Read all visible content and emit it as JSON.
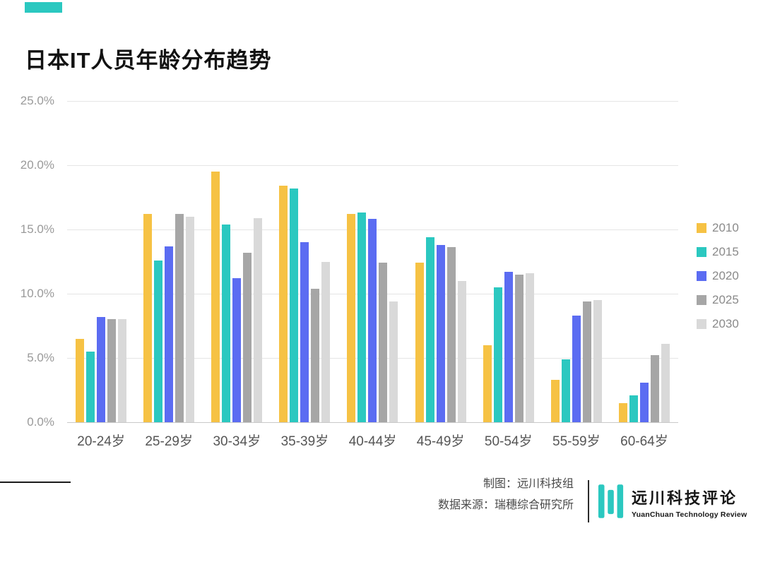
{
  "accent_color": "#2BC8C0",
  "title": "日本IT人员年龄分布趋势",
  "chart_data": {
    "type": "bar",
    "title": "日本IT人员年龄分布趋势",
    "categories": [
      "20-24岁",
      "25-29岁",
      "30-34岁",
      "35-39岁",
      "40-44岁",
      "45-49岁",
      "50-54岁",
      "55-59岁",
      "60-64岁"
    ],
    "series": [
      {
        "name": "2010",
        "color": "#F6C244",
        "values": [
          6.5,
          16.2,
          19.5,
          18.4,
          16.2,
          12.4,
          6.0,
          3.3,
          1.5
        ]
      },
      {
        "name": "2015",
        "color": "#2BC8C0",
        "values": [
          5.5,
          12.6,
          15.4,
          18.2,
          16.3,
          14.4,
          10.5,
          4.9,
          2.1
        ]
      },
      {
        "name": "2020",
        "color": "#5B6CF2",
        "values": [
          8.2,
          13.7,
          11.2,
          14.0,
          15.8,
          13.8,
          11.7,
          8.3,
          3.1
        ]
      },
      {
        "name": "2025",
        "color": "#A6A6A6",
        "values": [
          8.0,
          16.2,
          13.2,
          10.4,
          12.4,
          13.6,
          11.5,
          9.4,
          5.2
        ]
      },
      {
        "name": "2030",
        "color": "#D9D9D9",
        "values": [
          8.0,
          16.0,
          15.9,
          12.5,
          9.4,
          11.0,
          11.6,
          9.5,
          6.1
        ]
      }
    ],
    "ylim": [
      0,
      25
    ],
    "ytick_labels": [
      "25.0%",
      "20.0%",
      "15.0%",
      "10.0%",
      "5.0%",
      "0.0%"
    ],
    "grid": true,
    "legend_position": "right",
    "legend_labels": [
      "2010",
      "2015",
      "2020",
      "2025",
      "2030"
    ]
  },
  "footer": {
    "credit_line1": "制图：远川科技组",
    "credit_line2": "数据来源：瑞穗综合研究所",
    "logo_title": "远川科技评论",
    "logo_subtitle": "YuanChuan Technology Review"
  }
}
